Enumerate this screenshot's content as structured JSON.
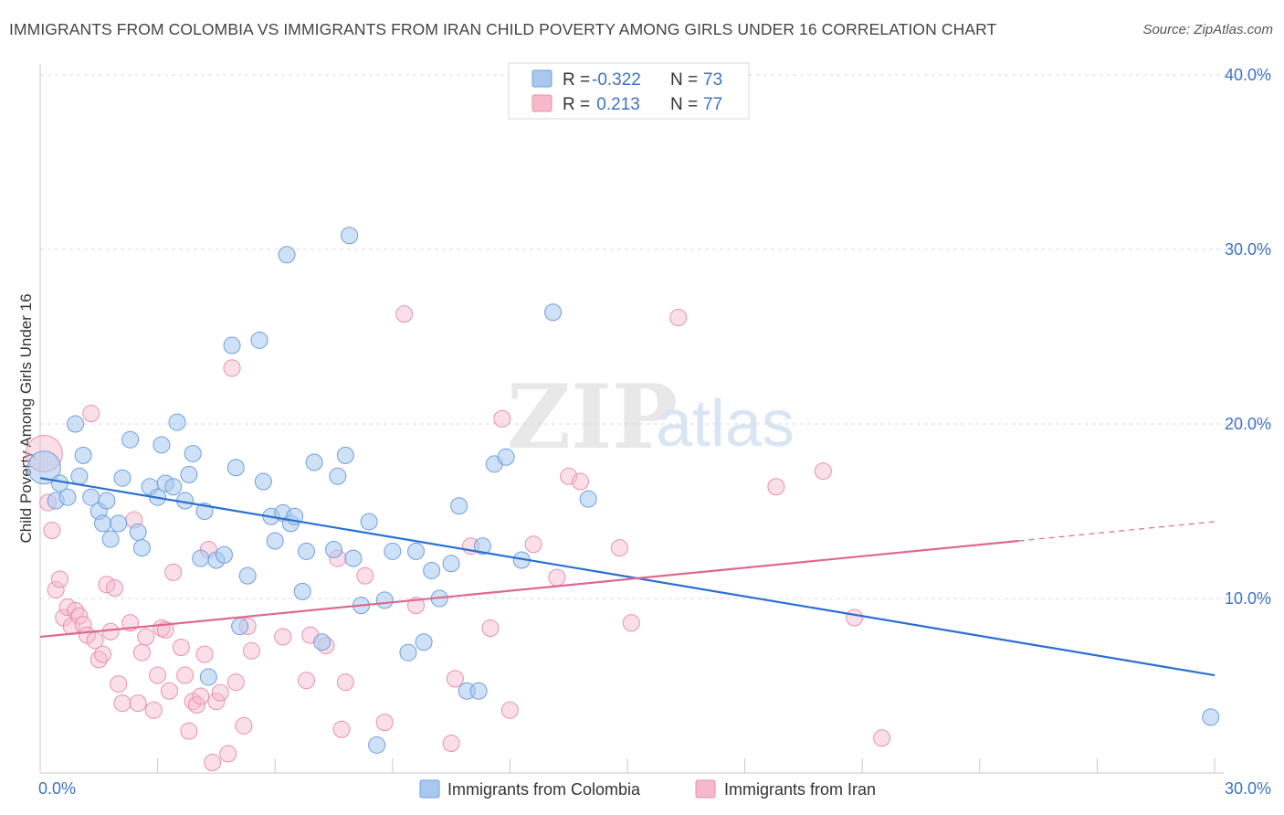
{
  "title": "IMMIGRANTS FROM COLOMBIA VS IMMIGRANTS FROM IRAN CHILD POVERTY AMONG GIRLS UNDER 16 CORRELATION CHART",
  "source": "Source: ZipAtlas.com",
  "watermark": {
    "zip": "ZIP",
    "atlas": "atlas"
  },
  "legend_top": [
    {
      "r_label": "R =",
      "r_value": "-0.322",
      "n_label": "N =",
      "n_value": "73"
    },
    {
      "r_label": "R =",
      "r_value": " 0.213",
      "n_label": "N =",
      "n_value": "77"
    }
  ],
  "legend_bottom": [
    {
      "label": "Immigrants from Colombia"
    },
    {
      "label": "Immigrants from Iran"
    }
  ],
  "colors": {
    "colombia_fill": "#a8c8f0",
    "colombia_stroke": "#6f9fdc",
    "colombia_line": "#2a6fd0",
    "iran_fill": "#f6b8cb",
    "iran_stroke": "#e890ad",
    "iran_line": "#e06890",
    "tick_text": "#3d72c4",
    "grid": "#d9d9e6"
  },
  "chart_data": {
    "type": "scatter",
    "title": "IMMIGRANTS FROM COLOMBIA VS IMMIGRANTS FROM IRAN CHILD POVERTY AMONG GIRLS UNDER 16 CORRELATION CHART",
    "xlabel": "",
    "ylabel": "Child Poverty Among Girls Under 16",
    "xlim": [
      0,
      30
    ],
    "ylim": [
      0,
      40
    ],
    "x_tick_labels": [
      "0.0%",
      "30.0%"
    ],
    "y_ticks": [
      10,
      20,
      30,
      40
    ],
    "y_tick_labels": [
      "10.0%",
      "20.0%",
      "30.0%",
      "40.0%"
    ],
    "grid": true,
    "legend_position": "top-center",
    "series": [
      {
        "name": "Immigrants from Colombia",
        "r": -0.322,
        "n": 73,
        "trend": {
          "x": [
            0,
            30
          ],
          "y": [
            16.9,
            5.6
          ]
        },
        "points": [
          [
            0.1,
            17.5
          ],
          [
            0.4,
            15.6
          ],
          [
            0.5,
            16.6
          ],
          [
            0.7,
            15.8
          ],
          [
            0.9,
            20.0
          ],
          [
            1.0,
            17.0
          ],
          [
            1.1,
            18.2
          ],
          [
            1.3,
            15.8
          ],
          [
            1.5,
            15.0
          ],
          [
            1.6,
            14.3
          ],
          [
            1.7,
            15.6
          ],
          [
            1.8,
            13.4
          ],
          [
            2.0,
            14.3
          ],
          [
            2.1,
            16.9
          ],
          [
            2.3,
            19.1
          ],
          [
            2.5,
            13.8
          ],
          [
            2.6,
            12.9
          ],
          [
            2.8,
            16.4
          ],
          [
            3.0,
            15.8
          ],
          [
            3.1,
            18.8
          ],
          [
            3.2,
            16.6
          ],
          [
            3.4,
            16.4
          ],
          [
            3.5,
            20.1
          ],
          [
            3.7,
            15.6
          ],
          [
            3.8,
            17.1
          ],
          [
            3.9,
            18.3
          ],
          [
            4.1,
            12.3
          ],
          [
            4.2,
            15.0
          ],
          [
            4.3,
            5.5
          ],
          [
            4.5,
            12.2
          ],
          [
            4.7,
            12.5
          ],
          [
            4.9,
            24.5
          ],
          [
            5.0,
            17.5
          ],
          [
            5.1,
            8.4
          ],
          [
            5.3,
            11.3
          ],
          [
            5.6,
            24.8
          ],
          [
            5.7,
            16.7
          ],
          [
            5.9,
            14.7
          ],
          [
            6.0,
            13.3
          ],
          [
            6.2,
            14.9
          ],
          [
            6.3,
            29.7
          ],
          [
            6.4,
            14.3
          ],
          [
            6.5,
            14.7
          ],
          [
            6.7,
            10.4
          ],
          [
            6.8,
            12.7
          ],
          [
            7.0,
            17.8
          ],
          [
            7.2,
            7.5
          ],
          [
            7.5,
            12.8
          ],
          [
            7.6,
            17.0
          ],
          [
            7.8,
            18.2
          ],
          [
            8.0,
            12.3
          ],
          [
            8.2,
            9.6
          ],
          [
            8.4,
            14.4
          ],
          [
            8.6,
            1.6
          ],
          [
            8.8,
            9.9
          ],
          [
            9.0,
            12.7
          ],
          [
            9.4,
            6.9
          ],
          [
            9.6,
            12.7
          ],
          [
            9.8,
            7.5
          ],
          [
            10.0,
            11.6
          ],
          [
            10.2,
            10.0
          ],
          [
            10.5,
            12.0
          ],
          [
            10.7,
            15.3
          ],
          [
            10.9,
            4.7
          ],
          [
            11.2,
            4.7
          ],
          [
            11.3,
            13.0
          ],
          [
            11.6,
            17.7
          ],
          [
            11.9,
            18.1
          ],
          [
            12.3,
            12.2
          ],
          [
            13.1,
            26.4
          ],
          [
            14.0,
            15.7
          ],
          [
            7.9,
            30.8
          ],
          [
            29.9,
            3.2
          ]
        ]
      },
      {
        "name": "Immigrants from Iran",
        "r": 0.213,
        "n": 77,
        "trend": {
          "x": [
            0,
            25
          ],
          "y": [
            7.8,
            13.3
          ],
          "dashed_to": {
            "x": 30,
            "y": 14.4
          }
        },
        "points": [
          [
            0.1,
            18.3
          ],
          [
            0.2,
            15.5
          ],
          [
            0.3,
            13.9
          ],
          [
            0.4,
            10.5
          ],
          [
            0.5,
            11.1
          ],
          [
            0.6,
            8.9
          ],
          [
            0.7,
            9.5
          ],
          [
            0.8,
            8.4
          ],
          [
            0.9,
            9.3
          ],
          [
            1.0,
            9.0
          ],
          [
            1.1,
            8.5
          ],
          [
            1.2,
            7.9
          ],
          [
            1.3,
            20.6
          ],
          [
            1.4,
            7.6
          ],
          [
            1.5,
            6.5
          ],
          [
            1.6,
            6.8
          ],
          [
            1.7,
            10.8
          ],
          [
            1.8,
            8.1
          ],
          [
            1.9,
            10.6
          ],
          [
            2.0,
            5.1
          ],
          [
            2.1,
            4.0
          ],
          [
            2.3,
            8.6
          ],
          [
            2.4,
            14.5
          ],
          [
            2.5,
            4.0
          ],
          [
            2.6,
            6.9
          ],
          [
            2.7,
            7.8
          ],
          [
            2.9,
            3.6
          ],
          [
            3.0,
            5.6
          ],
          [
            3.1,
            8.3
          ],
          [
            3.2,
            8.2
          ],
          [
            3.3,
            4.7
          ],
          [
            3.4,
            11.5
          ],
          [
            3.6,
            7.2
          ],
          [
            3.7,
            5.6
          ],
          [
            3.8,
            2.4
          ],
          [
            3.9,
            4.1
          ],
          [
            4.0,
            3.9
          ],
          [
            4.1,
            4.4
          ],
          [
            4.2,
            6.8
          ],
          [
            4.3,
            12.8
          ],
          [
            4.4,
            0.6
          ],
          [
            4.5,
            4.1
          ],
          [
            4.6,
            4.6
          ],
          [
            4.8,
            1.1
          ],
          [
            4.9,
            23.2
          ],
          [
            5.0,
            5.2
          ],
          [
            5.2,
            2.7
          ],
          [
            5.3,
            8.4
          ],
          [
            5.4,
            7.0
          ],
          [
            6.2,
            7.8
          ],
          [
            6.8,
            5.3
          ],
          [
            6.9,
            7.9
          ],
          [
            7.3,
            7.3
          ],
          [
            7.6,
            12.3
          ],
          [
            7.7,
            2.5
          ],
          [
            7.8,
            5.2
          ],
          [
            8.3,
            11.3
          ],
          [
            8.8,
            2.9
          ],
          [
            9.3,
            26.3
          ],
          [
            9.6,
            9.6
          ],
          [
            10.5,
            1.7
          ],
          [
            10.6,
            5.4
          ],
          [
            11.0,
            13.0
          ],
          [
            11.5,
            8.3
          ],
          [
            11.8,
            20.3
          ],
          [
            12.0,
            3.6
          ],
          [
            12.6,
            13.1
          ],
          [
            13.2,
            11.2
          ],
          [
            13.5,
            17.0
          ],
          [
            13.8,
            16.7
          ],
          [
            14.8,
            12.9
          ],
          [
            15.1,
            8.6
          ],
          [
            16.3,
            26.1
          ],
          [
            18.8,
            16.4
          ],
          [
            20.0,
            17.3
          ],
          [
            20.8,
            8.9
          ],
          [
            21.5,
            2.0
          ]
        ]
      }
    ]
  }
}
